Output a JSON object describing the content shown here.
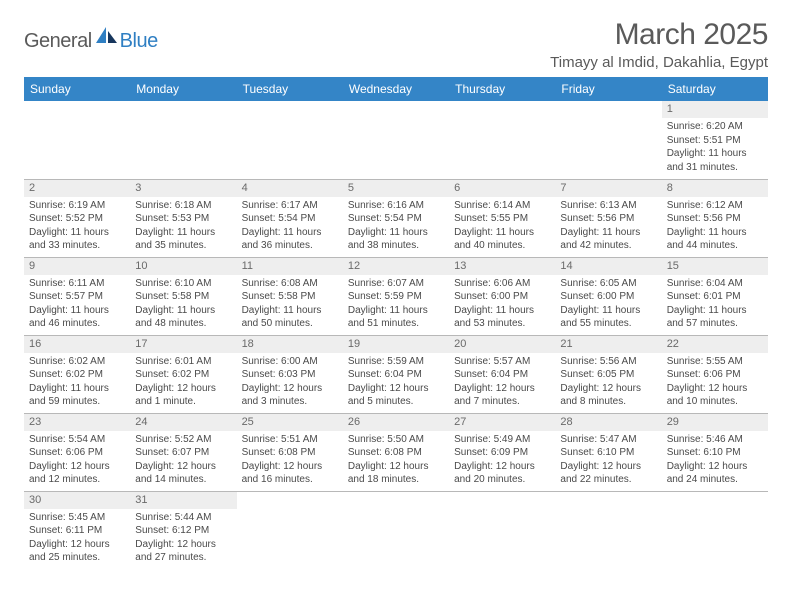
{
  "brand": {
    "part1": "General",
    "part2": "Blue"
  },
  "title": "March 2025",
  "location": "Timayy al Imdid, Dakahlia, Egypt",
  "colors": {
    "header_bg": "#3485c7",
    "header_fg": "#ffffff",
    "daynum_bg": "#eeeeee",
    "text": "#4a4a4a",
    "border": "#b8b8b8",
    "logo_accent": "#2f7fc3"
  },
  "day_labels": [
    "Sunday",
    "Monday",
    "Tuesday",
    "Wednesday",
    "Thursday",
    "Friday",
    "Saturday"
  ],
  "weeks": [
    [
      null,
      null,
      null,
      null,
      null,
      null,
      {
        "n": "1",
        "sr": "Sunrise: 6:20 AM",
        "ss": "Sunset: 5:51 PM",
        "d1": "Daylight: 11 hours",
        "d2": "and 31 minutes."
      }
    ],
    [
      {
        "n": "2",
        "sr": "Sunrise: 6:19 AM",
        "ss": "Sunset: 5:52 PM",
        "d1": "Daylight: 11 hours",
        "d2": "and 33 minutes."
      },
      {
        "n": "3",
        "sr": "Sunrise: 6:18 AM",
        "ss": "Sunset: 5:53 PM",
        "d1": "Daylight: 11 hours",
        "d2": "and 35 minutes."
      },
      {
        "n": "4",
        "sr": "Sunrise: 6:17 AM",
        "ss": "Sunset: 5:54 PM",
        "d1": "Daylight: 11 hours",
        "d2": "and 36 minutes."
      },
      {
        "n": "5",
        "sr": "Sunrise: 6:16 AM",
        "ss": "Sunset: 5:54 PM",
        "d1": "Daylight: 11 hours",
        "d2": "and 38 minutes."
      },
      {
        "n": "6",
        "sr": "Sunrise: 6:14 AM",
        "ss": "Sunset: 5:55 PM",
        "d1": "Daylight: 11 hours",
        "d2": "and 40 minutes."
      },
      {
        "n": "7",
        "sr": "Sunrise: 6:13 AM",
        "ss": "Sunset: 5:56 PM",
        "d1": "Daylight: 11 hours",
        "d2": "and 42 minutes."
      },
      {
        "n": "8",
        "sr": "Sunrise: 6:12 AM",
        "ss": "Sunset: 5:56 PM",
        "d1": "Daylight: 11 hours",
        "d2": "and 44 minutes."
      }
    ],
    [
      {
        "n": "9",
        "sr": "Sunrise: 6:11 AM",
        "ss": "Sunset: 5:57 PM",
        "d1": "Daylight: 11 hours",
        "d2": "and 46 minutes."
      },
      {
        "n": "10",
        "sr": "Sunrise: 6:10 AM",
        "ss": "Sunset: 5:58 PM",
        "d1": "Daylight: 11 hours",
        "d2": "and 48 minutes."
      },
      {
        "n": "11",
        "sr": "Sunrise: 6:08 AM",
        "ss": "Sunset: 5:58 PM",
        "d1": "Daylight: 11 hours",
        "d2": "and 50 minutes."
      },
      {
        "n": "12",
        "sr": "Sunrise: 6:07 AM",
        "ss": "Sunset: 5:59 PM",
        "d1": "Daylight: 11 hours",
        "d2": "and 51 minutes."
      },
      {
        "n": "13",
        "sr": "Sunrise: 6:06 AM",
        "ss": "Sunset: 6:00 PM",
        "d1": "Daylight: 11 hours",
        "d2": "and 53 minutes."
      },
      {
        "n": "14",
        "sr": "Sunrise: 6:05 AM",
        "ss": "Sunset: 6:00 PM",
        "d1": "Daylight: 11 hours",
        "d2": "and 55 minutes."
      },
      {
        "n": "15",
        "sr": "Sunrise: 6:04 AM",
        "ss": "Sunset: 6:01 PM",
        "d1": "Daylight: 11 hours",
        "d2": "and 57 minutes."
      }
    ],
    [
      {
        "n": "16",
        "sr": "Sunrise: 6:02 AM",
        "ss": "Sunset: 6:02 PM",
        "d1": "Daylight: 11 hours",
        "d2": "and 59 minutes."
      },
      {
        "n": "17",
        "sr": "Sunrise: 6:01 AM",
        "ss": "Sunset: 6:02 PM",
        "d1": "Daylight: 12 hours",
        "d2": "and 1 minute."
      },
      {
        "n": "18",
        "sr": "Sunrise: 6:00 AM",
        "ss": "Sunset: 6:03 PM",
        "d1": "Daylight: 12 hours",
        "d2": "and 3 minutes."
      },
      {
        "n": "19",
        "sr": "Sunrise: 5:59 AM",
        "ss": "Sunset: 6:04 PM",
        "d1": "Daylight: 12 hours",
        "d2": "and 5 minutes."
      },
      {
        "n": "20",
        "sr": "Sunrise: 5:57 AM",
        "ss": "Sunset: 6:04 PM",
        "d1": "Daylight: 12 hours",
        "d2": "and 7 minutes."
      },
      {
        "n": "21",
        "sr": "Sunrise: 5:56 AM",
        "ss": "Sunset: 6:05 PM",
        "d1": "Daylight: 12 hours",
        "d2": "and 8 minutes."
      },
      {
        "n": "22",
        "sr": "Sunrise: 5:55 AM",
        "ss": "Sunset: 6:06 PM",
        "d1": "Daylight: 12 hours",
        "d2": "and 10 minutes."
      }
    ],
    [
      {
        "n": "23",
        "sr": "Sunrise: 5:54 AM",
        "ss": "Sunset: 6:06 PM",
        "d1": "Daylight: 12 hours",
        "d2": "and 12 minutes."
      },
      {
        "n": "24",
        "sr": "Sunrise: 5:52 AM",
        "ss": "Sunset: 6:07 PM",
        "d1": "Daylight: 12 hours",
        "d2": "and 14 minutes."
      },
      {
        "n": "25",
        "sr": "Sunrise: 5:51 AM",
        "ss": "Sunset: 6:08 PM",
        "d1": "Daylight: 12 hours",
        "d2": "and 16 minutes."
      },
      {
        "n": "26",
        "sr": "Sunrise: 5:50 AM",
        "ss": "Sunset: 6:08 PM",
        "d1": "Daylight: 12 hours",
        "d2": "and 18 minutes."
      },
      {
        "n": "27",
        "sr": "Sunrise: 5:49 AM",
        "ss": "Sunset: 6:09 PM",
        "d1": "Daylight: 12 hours",
        "d2": "and 20 minutes."
      },
      {
        "n": "28",
        "sr": "Sunrise: 5:47 AM",
        "ss": "Sunset: 6:10 PM",
        "d1": "Daylight: 12 hours",
        "d2": "and 22 minutes."
      },
      {
        "n": "29",
        "sr": "Sunrise: 5:46 AM",
        "ss": "Sunset: 6:10 PM",
        "d1": "Daylight: 12 hours",
        "d2": "and 24 minutes."
      }
    ],
    [
      {
        "n": "30",
        "sr": "Sunrise: 5:45 AM",
        "ss": "Sunset: 6:11 PM",
        "d1": "Daylight: 12 hours",
        "d2": "and 25 minutes."
      },
      {
        "n": "31",
        "sr": "Sunrise: 5:44 AM",
        "ss": "Sunset: 6:12 PM",
        "d1": "Daylight: 12 hours",
        "d2": "and 27 minutes."
      },
      null,
      null,
      null,
      null,
      null
    ]
  ]
}
